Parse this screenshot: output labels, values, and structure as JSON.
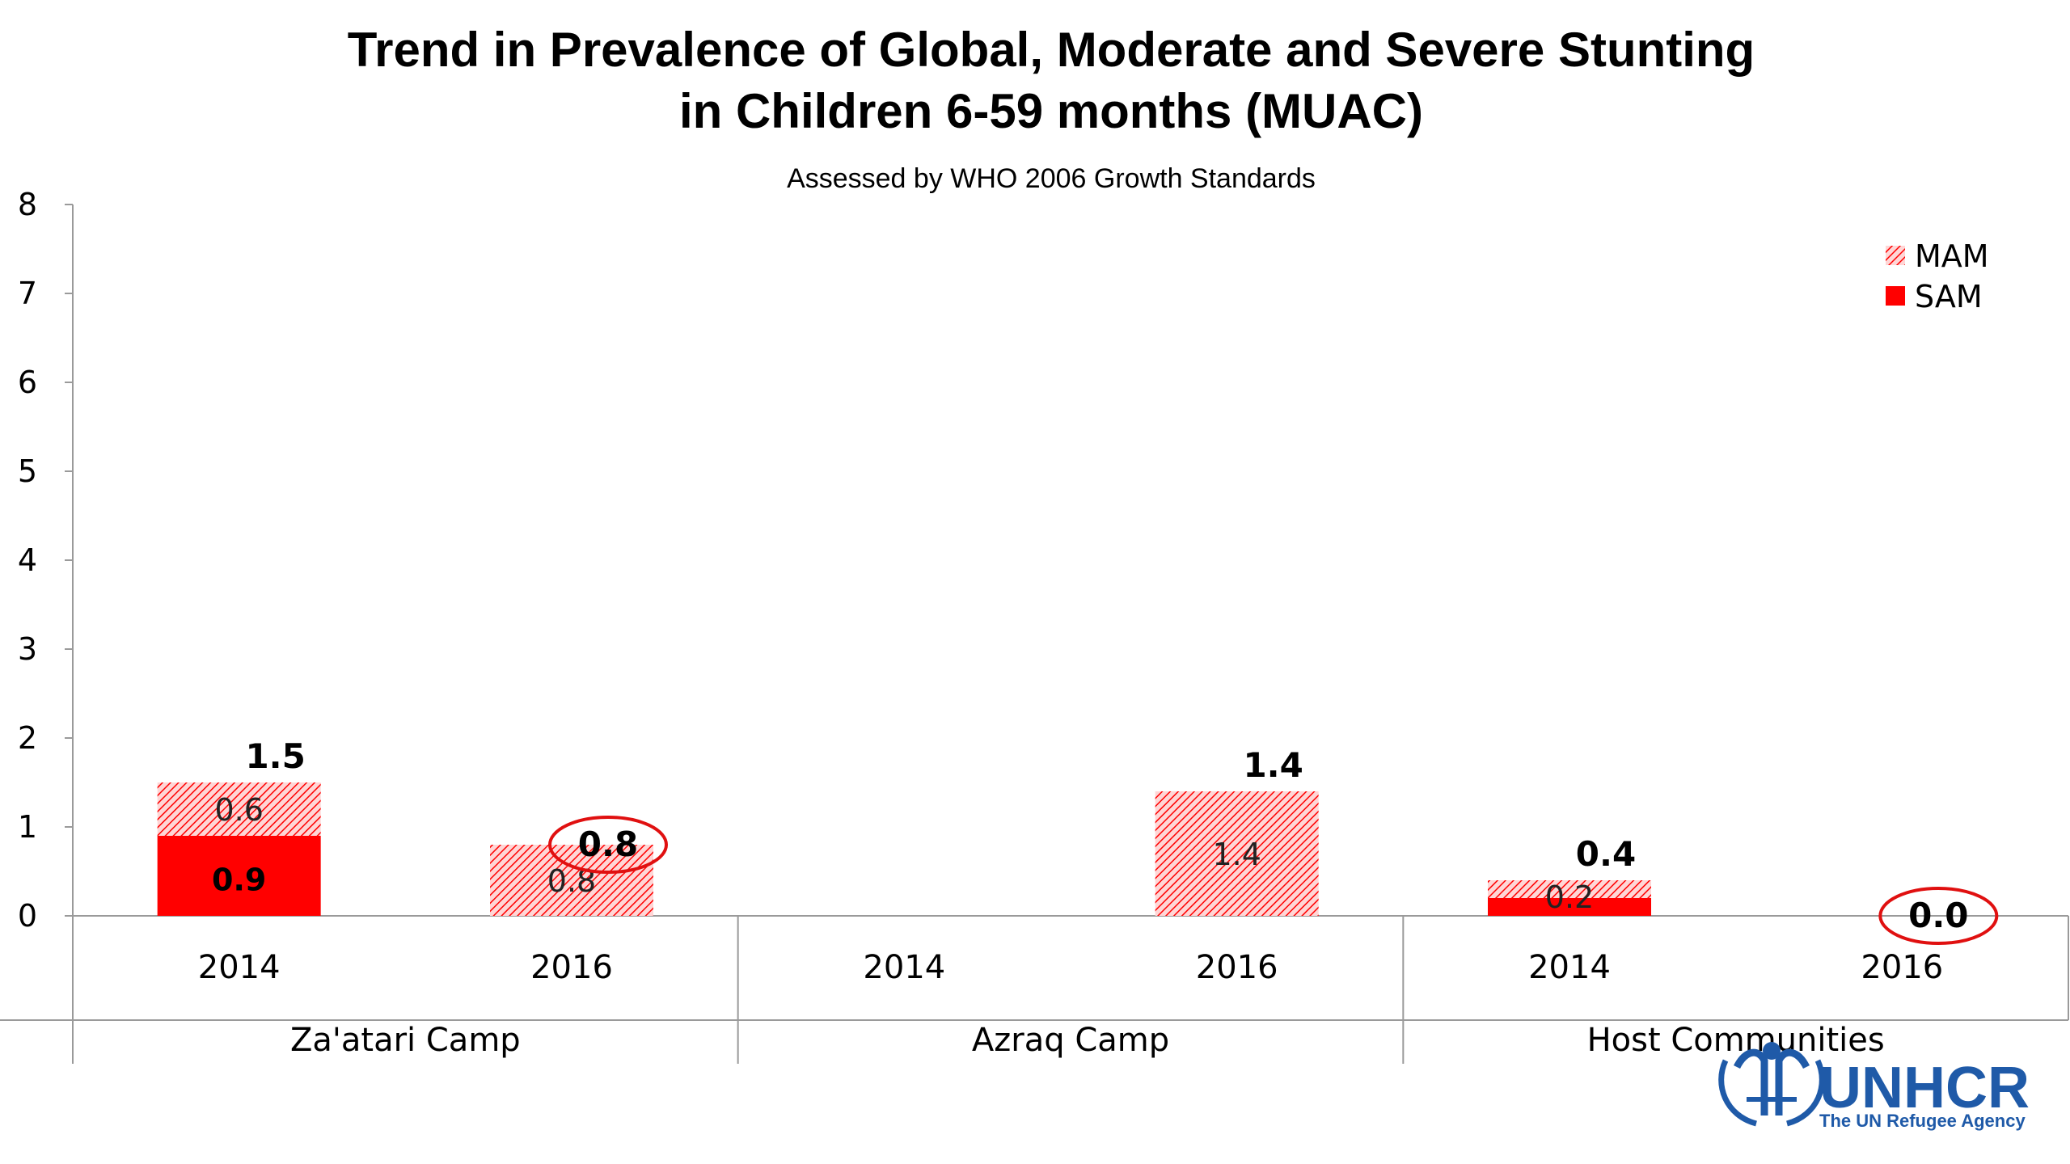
{
  "chart_data": {
    "type": "bar",
    "title_lines": [
      "Trend in Prevalence of Global, Moderate and Severe Stunting",
      "in Children 6-59 months (MUAC)"
    ],
    "subtitle": "Assessed by WHO 2006 Growth Standards",
    "groups": [
      "Za'atari Camp",
      "Azraq Camp",
      "Host Communities"
    ],
    "categories": [
      "2014",
      "2016",
      "2014",
      "2016",
      "2014",
      "2016"
    ],
    "category_group": [
      0,
      0,
      1,
      1,
      2,
      2
    ],
    "stacked": true,
    "series": [
      {
        "name": "SAM",
        "values": [
          0.9,
          null,
          null,
          null,
          0.2,
          null
        ],
        "labels": [
          "0.9",
          "",
          "",
          "",
          "0.2",
          ""
        ]
      },
      {
        "name": "MAM",
        "values": [
          0.6,
          0.8,
          null,
          1.4,
          0.2,
          null
        ],
        "labels": [
          "0.6",
          "0.8",
          "",
          "1.4",
          "",
          ""
        ]
      }
    ],
    "totals": [
      1.5,
      0.8,
      null,
      1.4,
      0.4,
      0.0
    ],
    "total_labels": [
      "1.5",
      "0.8",
      "",
      "1.4",
      "0.4",
      "0.0"
    ],
    "circled_totals": [
      false,
      true,
      false,
      false,
      false,
      true
    ],
    "ylim": [
      0,
      8
    ],
    "yticks": [
      "0",
      "1",
      "2",
      "3",
      "4",
      "5",
      "6",
      "7",
      "8"
    ],
    "grid": false,
    "legend_position": "top-right",
    "colors": {
      "SAM": "#ff0000",
      "MAM": "#ff0000",
      "circle": "#e01010",
      "MAM_background": "#ffd6d6"
    }
  },
  "logo": {
    "name": "UNHCR",
    "tagline": "The UN Refugee Agency",
    "icon": "unhcr-emblem-icon",
    "color": "#1f5aa8"
  }
}
